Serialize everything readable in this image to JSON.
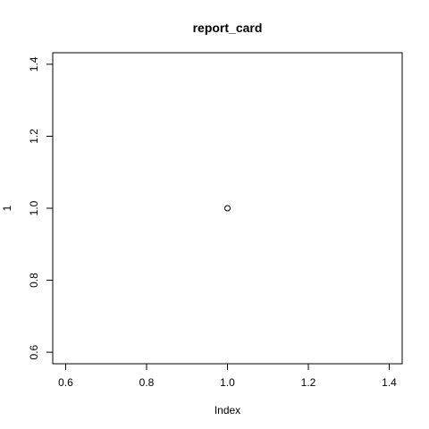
{
  "chart_data": {
    "type": "scatter",
    "title": "report_card",
    "xlabel": "Index",
    "ylabel": "1",
    "xlim": [
      0.568,
      1.432
    ],
    "ylim": [
      0.568,
      1.432
    ],
    "x_ticks": [
      0.6,
      0.8,
      1.0,
      1.2,
      1.4
    ],
    "x_tick_labels": [
      "0.6",
      "0.8",
      "1.0",
      "1.2",
      "1.4"
    ],
    "y_ticks": [
      0.6,
      0.8,
      1.0,
      1.2,
      1.4
    ],
    "y_tick_labels": [
      "0.6",
      "0.8",
      "1.0",
      "1.2",
      "1.4"
    ],
    "grid": false,
    "marker": "open-circle",
    "series": [
      {
        "x": [
          1
        ],
        "y": [
          1
        ]
      }
    ]
  }
}
